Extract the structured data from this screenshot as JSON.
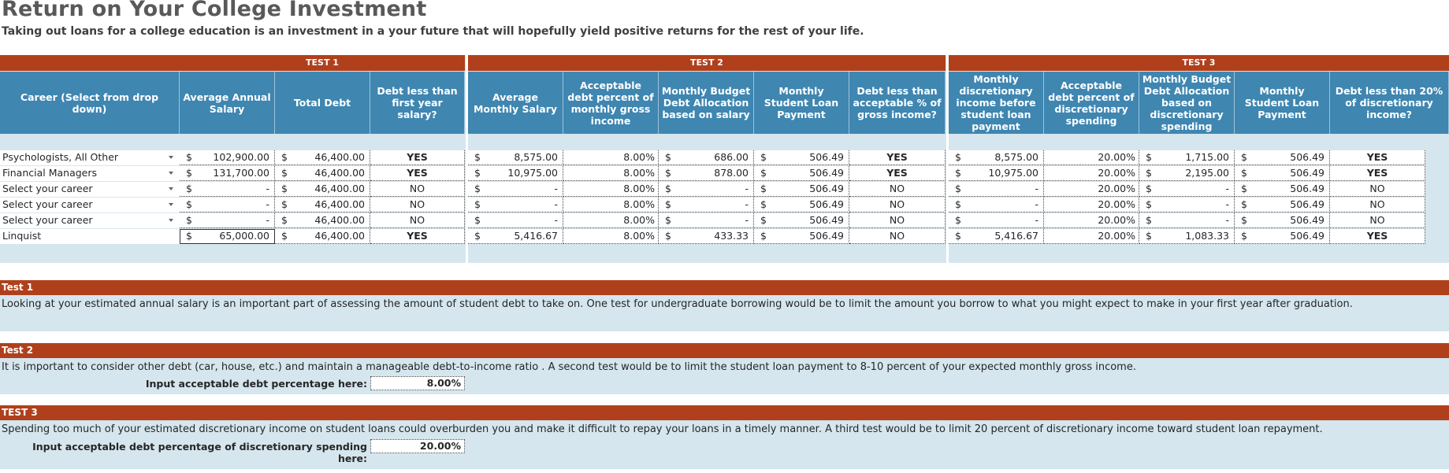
{
  "title": "Return on Your College Investment",
  "subtitle": "Taking out loans for a college education is an investment in a your future that will hopefully yield positive returns for the rest of your life.",
  "bands": {
    "test1": "TEST 1",
    "test2": "TEST 2",
    "test3": "TEST 3"
  },
  "headers": [
    "Career (Select from drop down)",
    "Average Annual Salary",
    "Total Debt",
    "Debt less than first year salary?",
    "Average Monthly Salary",
    "Acceptable debt percent of monthly gross income",
    "Monthly Budget Debt Allocation based on salary",
    "Monthly Student Loan Payment",
    "Debt less than acceptable % of gross income?",
    "Monthly discretionary income before student loan payment",
    "Acceptable debt percent of discretionary spending",
    "Monthly Budget Debt Allocation based on discretionary spending",
    "Monthly Student Loan Payment",
    "Debt less than 20% of discretionary income?"
  ],
  "currency_symbol": "$",
  "rows": [
    {
      "career": "Psychologists, All Other",
      "annual": "102,900.00",
      "debt": "46,400.00",
      "t1": "YES",
      "monthly": "8,575.00",
      "pct": "8.00%",
      "alloc": "686.00",
      "payment": "506.49",
      "t2": "YES",
      "disc": "8,575.00",
      "dpct": "20.00%",
      "dalloc": "1,715.00",
      "dpayment": "506.49",
      "t3": "YES"
    },
    {
      "career": "Financial Managers",
      "annual": "131,700.00",
      "debt": "46,400.00",
      "t1": "YES",
      "monthly": "10,975.00",
      "pct": "8.00%",
      "alloc": "878.00",
      "payment": "506.49",
      "t2": "YES",
      "disc": "10,975.00",
      "dpct": "20.00%",
      "dalloc": "2,195.00",
      "dpayment": "506.49",
      "t3": "YES"
    },
    {
      "career": "Select your career",
      "annual": "-",
      "debt": "46,400.00",
      "t1": "NO",
      "monthly": "-",
      "pct": "8.00%",
      "alloc": "-",
      "payment": "506.49",
      "t2": "NO",
      "disc": "-",
      "dpct": "20.00%",
      "dalloc": "-",
      "dpayment": "506.49",
      "t3": "NO"
    },
    {
      "career": "Select your career",
      "annual": "-",
      "debt": "46,400.00",
      "t1": "NO",
      "monthly": "-",
      "pct": "8.00%",
      "alloc": "-",
      "payment": "506.49",
      "t2": "NO",
      "disc": "-",
      "dpct": "20.00%",
      "dalloc": "-",
      "dpayment": "506.49",
      "t3": "NO"
    },
    {
      "career": "Select your career",
      "annual": "-",
      "debt": "46,400.00",
      "t1": "NO",
      "monthly": "-",
      "pct": "8.00%",
      "alloc": "-",
      "payment": "506.49",
      "t2": "NO",
      "disc": "-",
      "dpct": "20.00%",
      "dalloc": "-",
      "dpayment": "506.49",
      "t3": "NO"
    },
    {
      "career": "Linquist",
      "annual": "65,000.00",
      "debt": "46,400.00",
      "t1": "YES",
      "monthly": "5,416.67",
      "pct": "8.00%",
      "alloc": "433.33",
      "payment": "506.49",
      "t2": "NO",
      "disc": "5,416.67",
      "dpct": "20.00%",
      "dalloc": "1,083.33",
      "dpayment": "506.49",
      "t3": "YES"
    }
  ],
  "notes": {
    "test1": {
      "heading": "Test 1",
      "text": "Looking at your estimated annual salary is an important part of assessing the amount of student debt to take on. One test for undergraduate borrowing would be to limit the amount you borrow to what you might expect to make in your first year after graduation."
    },
    "test2": {
      "heading": "Test 2",
      "text": "It is important to consider other debt (car, house, etc.)  and maintain a manageable debt-to-income ratio . A second test would be to limit the student loan payment to 8-10 percent of your expected monthly gross income.",
      "input_label": "Input acceptable debt percentage here:",
      "input_value": "8.00%"
    },
    "test3": {
      "heading": "TEST 3",
      "text": "Spending too much of your estimated discretionary income on student loans could overburden you and make it difficult to repay your loans in a timely manner. A third test would be to limit 20 percent of discretionary income toward student loan repayment.",
      "input_label": "Input acceptable debt percentage of discretionary spending here:",
      "input_value": "20.00%"
    }
  },
  "colors": {
    "band": "#b0401c",
    "header": "#3f86b1",
    "sheet": "#d5e6ee"
  }
}
